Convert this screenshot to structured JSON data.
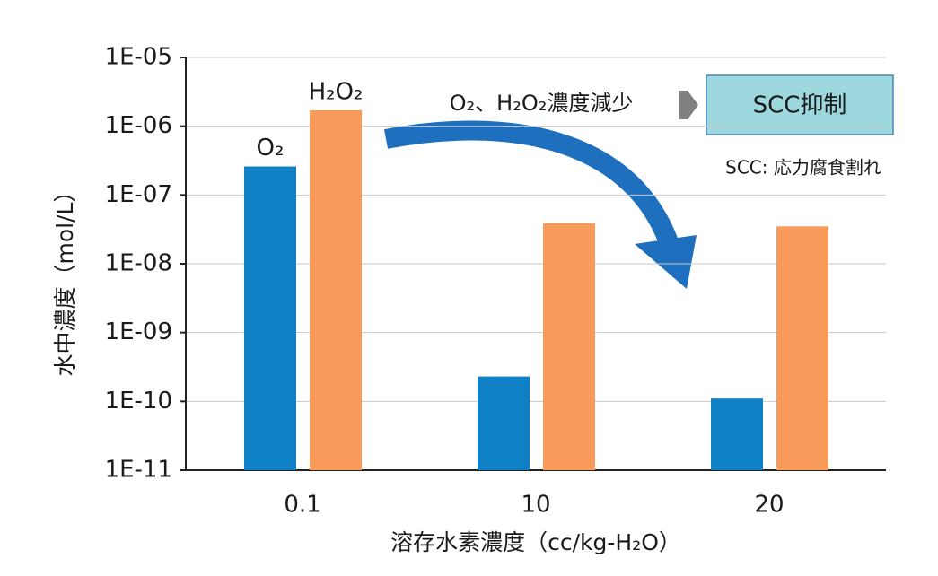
{
  "chart_data": {
    "type": "bar",
    "log_scale": true,
    "grid": true,
    "categories": [
      "0.1",
      "10",
      "20"
    ],
    "series": [
      {
        "name": "O₂",
        "color": "#0f7fc6",
        "values": [
          2.6e-07,
          2.3e-10,
          1.1e-10
        ]
      },
      {
        "name": "H₂O₂",
        "color": "#f79a5a",
        "values": [
          1.7e-06,
          3.9e-08,
          3.5e-08
        ]
      }
    ],
    "ylim": [
      1e-11,
      1e-05
    ],
    "yticks": [
      {
        "value": 1e-11,
        "label": "1E-11"
      },
      {
        "value": 1e-10,
        "label": "1E-10"
      },
      {
        "value": 1e-09,
        "label": "1E-09"
      },
      {
        "value": 1e-08,
        "label": "1E-08"
      },
      {
        "value": 1e-07,
        "label": "1E-07"
      },
      {
        "value": 1e-06,
        "label": "1E-06"
      },
      {
        "value": 1e-05,
        "label": "1E-05"
      }
    ],
    "y_label": "水中濃度（mol/L）",
    "x_label": "溶存水素濃度（cc/kg-H₂O）",
    "annotations": [
      "O₂、H₂O₂濃度減少",
      "SCC抑制",
      "SCC: 応力腐食割れ"
    ]
  }
}
